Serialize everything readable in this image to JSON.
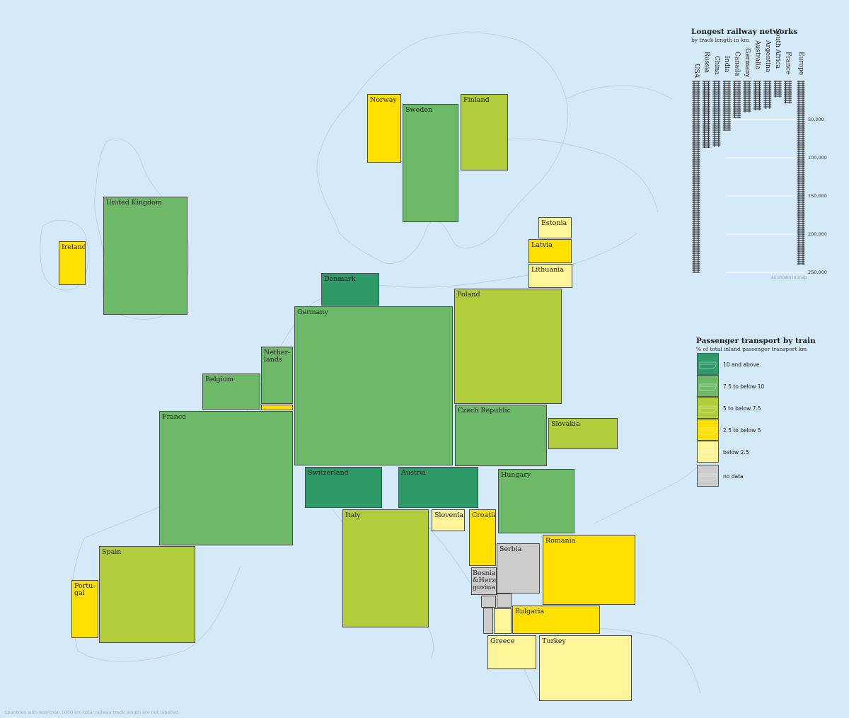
{
  "colors": {
    "sea": "#d4eaf8",
    "land_outline": "#b6cfdf",
    "ten_and_above": "#2e9a68",
    "seven_five_to_ten": "#6eb968",
    "five_to_seven_five": "#b2cd3c",
    "two_five_to_five": "#ffe000",
    "below_two_five": "#fff498",
    "no_data": "#cccccc"
  },
  "countries": [
    {
      "id": "norway",
      "label": "Norway",
      "category": "2.5 to below 5"
    },
    {
      "id": "sweden",
      "label": "Sweden",
      "category": "7.5 to below 10"
    },
    {
      "id": "finland",
      "label": "Finland",
      "category": "5 to below 7.5"
    },
    {
      "id": "united-kingdom",
      "label": "United Kingdom",
      "category": "7.5 to below 10"
    },
    {
      "id": "ireland",
      "label": "Ireland",
      "category": "2.5 to below 5"
    },
    {
      "id": "estonia",
      "label": "Estonia",
      "category": "below 2.5"
    },
    {
      "id": "latvia",
      "label": "Latvia",
      "category": "2.5 to below 5"
    },
    {
      "id": "lithuania",
      "label": "Lithuania",
      "category": "below 2.5"
    },
    {
      "id": "denmark",
      "label": "Denmark",
      "category": "10 and above"
    },
    {
      "id": "poland",
      "label": "Poland",
      "category": "5 to below 7.5"
    },
    {
      "id": "germany",
      "label": "Germany",
      "category": "7.5 to below 10"
    },
    {
      "id": "netherlands",
      "label": "Nether-\nlands",
      "category": "7.5 to below 10"
    },
    {
      "id": "luxembourg",
      "label": "",
      "category": "2.5 to below 5"
    },
    {
      "id": "belgium",
      "label": "Belgium",
      "category": "7.5 to below 10"
    },
    {
      "id": "france",
      "label": "France",
      "category": "7.5 to below 10"
    },
    {
      "id": "czech-republic",
      "label": "Czech Republic",
      "category": "7.5 to below 10"
    },
    {
      "id": "slovakia",
      "label": "Slovakia",
      "category": "5 to below 7.5"
    },
    {
      "id": "switzerland",
      "label": "Switzerland",
      "category": "10 and above"
    },
    {
      "id": "austria",
      "label": "Austria",
      "category": "10 and above"
    },
    {
      "id": "hungary",
      "label": "Hungary",
      "category": "7.5 to below 10"
    },
    {
      "id": "italy",
      "label": "Italy",
      "category": "5 to below 7.5"
    },
    {
      "id": "slovenia",
      "label": "Slovenia",
      "category": "below 2.5"
    },
    {
      "id": "croatia",
      "label": "Croatia",
      "category": "2.5 to below 5"
    },
    {
      "id": "serbia",
      "label": "Serbia",
      "category": "no data"
    },
    {
      "id": "bosnia",
      "label": "Bosnia\n&Herze-\ngovina",
      "category": "no data"
    },
    {
      "id": "romania",
      "label": "Romania",
      "category": "2.5 to below 5"
    },
    {
      "id": "montenegro",
      "label": "",
      "category": "no data"
    },
    {
      "id": "kosovo",
      "label": "",
      "category": "no data"
    },
    {
      "id": "albania",
      "label": "",
      "category": "no data"
    },
    {
      "id": "north-macedonia",
      "label": "",
      "category": "below 2.5"
    },
    {
      "id": "bulgaria",
      "label": "Bulgaria",
      "category": "2.5 to below 5"
    },
    {
      "id": "greece",
      "label": "Greece",
      "category": "below 2.5"
    },
    {
      "id": "turkey",
      "label": "Turkey",
      "category": "below 2.5"
    },
    {
      "id": "spain",
      "label": "Spain",
      "category": "5 to below 7.5"
    },
    {
      "id": "portugal",
      "label": "Portu-\ngal",
      "category": "2.5 to below 5"
    }
  ],
  "rail_legend": {
    "title": "Longest railway networks",
    "subtitle": "by track length in km",
    "countries": [
      {
        "name": "USA",
        "km": 250000
      },
      {
        "name": "Russia",
        "km": 87000
      },
      {
        "name": "China",
        "km": 86000
      },
      {
        "name": "India",
        "km": 64000
      },
      {
        "name": "Canada",
        "km": 48000
      },
      {
        "name": "Germany",
        "km": 41000
      },
      {
        "name": "Australia",
        "km": 38000
      },
      {
        "name": "Argentina",
        "km": 36000
      },
      {
        "name": "South Africa",
        "km": 21000
      },
      {
        "name": "France",
        "km": 29000
      },
      {
        "name": "Europe",
        "km": 240000
      }
    ],
    "ticks": [
      "50,000",
      "100,000",
      "150,000",
      "200,000",
      "250,000"
    ],
    "note": "as shown in map"
  },
  "passenger_legend": {
    "title": "Passenger transport by train",
    "subtitle": "% of total inland passenger transport km",
    "items": [
      {
        "label": "10 and above",
        "color": "#2e9a68"
      },
      {
        "label": "7.5 to below 10",
        "color": "#6eb968"
      },
      {
        "label": "5 to below 7.5",
        "color": "#b2cd3c"
      },
      {
        "label": "2.5 to below 5",
        "color": "#ffe000"
      },
      {
        "label": "below 2.5",
        "color": "#fff498"
      },
      {
        "label": "no data",
        "color": "#cccccc"
      }
    ]
  },
  "footnote": "Countries with less than 1000 km total railway track length are not labelled"
}
